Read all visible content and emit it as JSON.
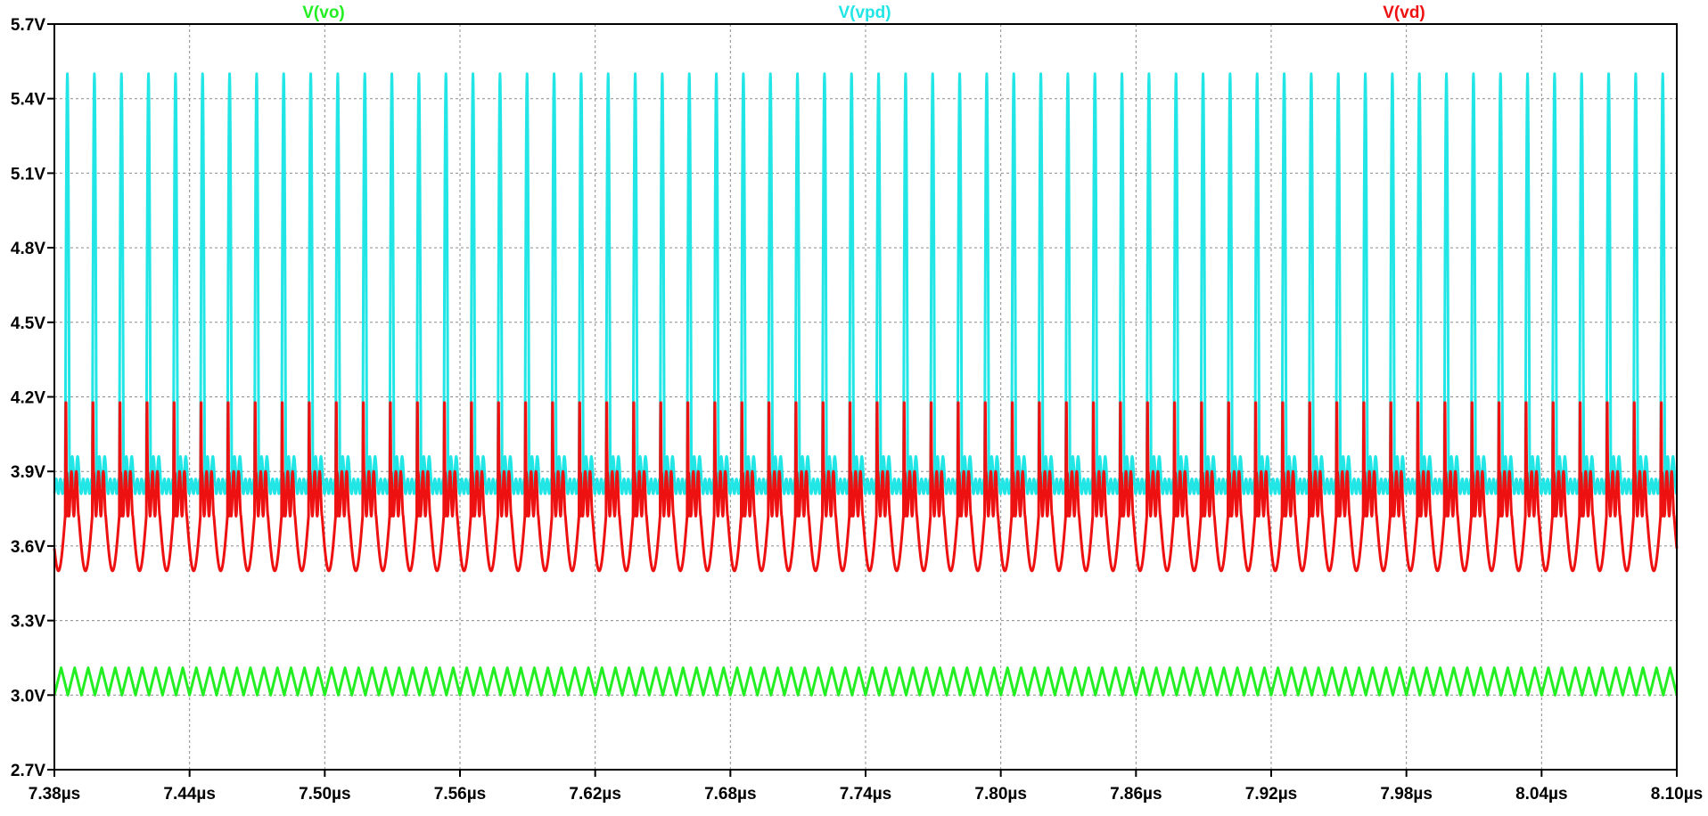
{
  "chart_data": {
    "type": "line",
    "title": "",
    "xlabel": "",
    "ylabel": "",
    "grid": true,
    "legend": "top",
    "xlim": [
      7.38,
      8.1
    ],
    "ylim": [
      2.7,
      5.7
    ],
    "x_ticks": [
      "7.38µs",
      "7.44µs",
      "7.50µs",
      "7.56µs",
      "7.62µs",
      "7.68µs",
      "7.74µs",
      "7.80µs",
      "7.86µs",
      "7.92µs",
      "7.98µs",
      "8.04µs",
      "8.10µs"
    ],
    "y_ticks": [
      "5.7V",
      "5.4V",
      "5.1V",
      "4.8V",
      "4.5V",
      "4.2V",
      "3.9V",
      "3.6V",
      "3.3V",
      "3.0V",
      "2.7V"
    ],
    "series": [
      {
        "name": "V(vo)",
        "color": "#22ee22",
        "period_us": 0.006,
        "shape": "triangle",
        "min_V": 3.0,
        "max_V": 3.11
      },
      {
        "name": "V(vpd)",
        "color": "#22e5e5",
        "period_us": 0.012,
        "shape": "pulse",
        "min_V": 3.84,
        "max_V": 5.5,
        "secondary_peak_V": 3.96
      },
      {
        "name": "V(vd)",
        "color": "#ee1111",
        "period_us": 0.012,
        "shape": "ringing",
        "min_V": 3.5,
        "max_V": 4.2,
        "ring_high_V": 3.9,
        "ring_low_V": 3.72
      }
    ]
  }
}
